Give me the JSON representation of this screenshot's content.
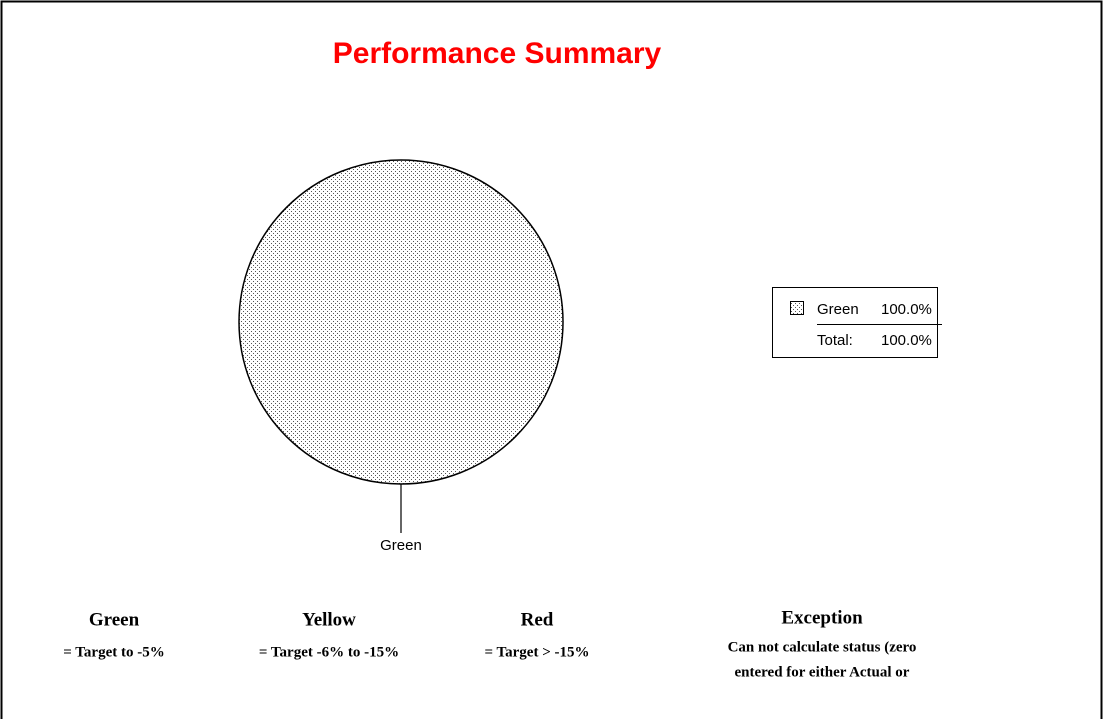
{
  "chart_data": {
    "type": "pie",
    "title": "Performance Summary",
    "categories": [
      "Green"
    ],
    "values": [
      100
    ],
    "value_labels": [
      "100.0%"
    ],
    "patterns": [
      "dots"
    ],
    "total_label": "Total:",
    "total": {
      "value": 100,
      "label": "100.0%"
    },
    "legend": "right"
  },
  "status_key": [
    {
      "name": "Green",
      "lines": [
        "= Target to -5%"
      ]
    },
    {
      "name": "Yellow",
      "lines": [
        "= Target -6% to -15%"
      ]
    },
    {
      "name": "Red",
      "lines": [
        "= Target > -15%"
      ]
    },
    {
      "name": "Exception",
      "lines": [
        "Can not calculate status (zero",
        "entered for either Actual or"
      ]
    }
  ]
}
